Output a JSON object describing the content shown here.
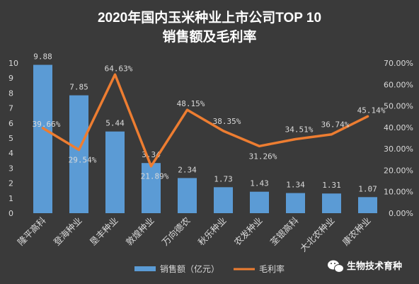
{
  "chart_data": {
    "type": "bar",
    "title_line1": "2020年国内玉米种业上市公司TOP 10",
    "title_line2": "销售额及毛利率",
    "categories": [
      "隆平高科",
      "登海种业",
      "垦丰种业",
      "敦煌种业",
      "万向德农",
      "秋乐种业",
      "农发种业",
      "荃银高科",
      "大北农种业",
      "康农种业"
    ],
    "series": [
      {
        "name": "销售额（亿元）",
        "type": "bar",
        "axis": "left",
        "values": [
          9.88,
          7.85,
          5.44,
          3.34,
          2.34,
          1.73,
          1.43,
          1.34,
          1.31,
          1.07
        ],
        "labels": [
          "9.88",
          "7.85",
          "5.44",
          "3.34",
          "2.34",
          "1.73",
          "1.43",
          "1.34",
          "1.31",
          "1.07"
        ],
        "color": "#5b9bd5"
      },
      {
        "name": "毛利率",
        "type": "line",
        "axis": "right",
        "values": [
          39.66,
          29.54,
          64.63,
          21.89,
          48.15,
          38.35,
          31.26,
          34.51,
          36.74,
          45.14
        ],
        "labels": [
          "39.66%",
          "29.54%",
          "64.63%",
          "21.89%",
          "48.15%",
          "38.35%",
          "31.26%",
          "34.51%",
          "36.74%",
          "45.14%"
        ],
        "color": "#ed7d31"
      }
    ],
    "y_left": {
      "min": 0,
      "max": 10,
      "ticks": [
        "0",
        "1",
        "2",
        "3",
        "4",
        "5",
        "6",
        "7",
        "8",
        "9",
        "10"
      ]
    },
    "y_right": {
      "min": 0,
      "max": 70,
      "ticks": [
        "0.00%",
        "10.00%",
        "20.00%",
        "30.00%",
        "40.00%",
        "50.00%",
        "60.00%",
        "70.00%"
      ]
    },
    "grid": false,
    "legend": "bottom"
  },
  "watermark": "生物技术育种",
  "colors": {
    "background": "#3a3a3a",
    "text": "#d9d9d9",
    "bar": "#5b9bd5",
    "line": "#ed7d31"
  }
}
